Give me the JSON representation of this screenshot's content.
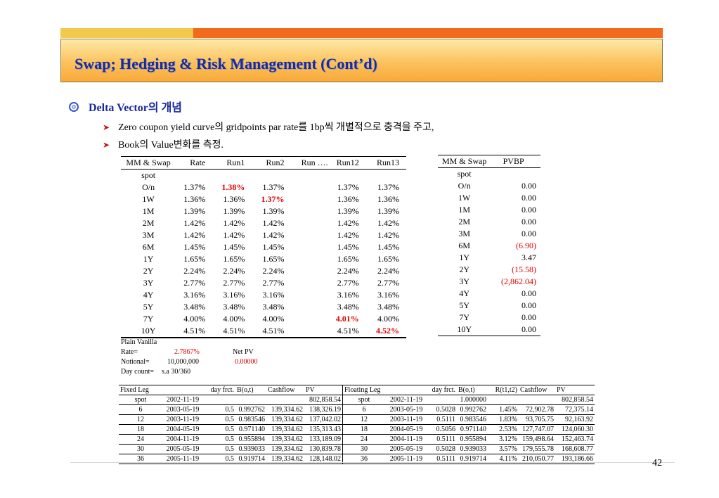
{
  "title": "Swap; Hedging & Risk Management (Cont’d)",
  "bullet": "Delta Vector의 개념",
  "sub_bullets": [
    "Zero coupon yield curve의 gridpoints par rate를 1bp씩 개별적으로 충격을 주고,",
    "Book의 Value변화를 측정."
  ],
  "rate_table": {
    "headers": [
      "MM & Swap",
      "Rate",
      "Run1",
      "Run2",
      "Run ….",
      "Run12",
      "Run13"
    ],
    "rows": [
      [
        "spot",
        "",
        "",
        "",
        "",
        "",
        ""
      ],
      [
        "O/n",
        "1.37%",
        "1.38%",
        "1.37%",
        "",
        "1.37%",
        "1.37%"
      ],
      [
        "1W",
        "1.36%",
        "1.36%",
        "1.37%",
        "",
        "1.36%",
        "1.36%"
      ],
      [
        "1M",
        "1.39%",
        "1.39%",
        "1.39%",
        "",
        "1.39%",
        "1.39%"
      ],
      [
        "2M",
        "1.42%",
        "1.42%",
        "1.42%",
        "",
        "1.42%",
        "1.42%"
      ],
      [
        "3M",
        "1.42%",
        "1.42%",
        "1.42%",
        "",
        "1.42%",
        "1.42%"
      ],
      [
        "6M",
        "1.45%",
        "1.45%",
        "1.45%",
        "",
        "1.45%",
        "1.45%"
      ],
      [
        "1Y",
        "1.65%",
        "1.65%",
        "1.65%",
        "",
        "1.65%",
        "1.65%"
      ],
      [
        "2Y",
        "2.24%",
        "2.24%",
        "2.24%",
        "",
        "2.24%",
        "2.24%"
      ],
      [
        "3Y",
        "2.77%",
        "2.77%",
        "2.77%",
        "",
        "2.77%",
        "2.77%"
      ],
      [
        "4Y",
        "3.16%",
        "3.16%",
        "3.16%",
        "",
        "3.16%",
        "3.16%"
      ],
      [
        "5Y",
        "3.48%",
        "3.48%",
        "3.48%",
        "",
        "3.48%",
        "3.48%"
      ],
      [
        "7Y",
        "4.00%",
        "4.00%",
        "4.00%",
        "",
        "4.01%",
        "4.00%"
      ],
      [
        "10Y",
        "4.51%",
        "4.51%",
        "4.51%",
        "",
        "4.51%",
        "4.52%"
      ]
    ],
    "highlighted": [
      [
        1,
        2
      ],
      [
        2,
        3
      ],
      [
        12,
        5
      ],
      [
        13,
        6
      ]
    ]
  },
  "pvbp_table": {
    "headers": [
      "MM & Swap",
      "PVBP"
    ],
    "rows": [
      [
        "spot",
        ""
      ],
      [
        "O/n",
        "0.00"
      ],
      [
        "1W",
        "0.00"
      ],
      [
        "1M",
        "0.00"
      ],
      [
        "2M",
        "0.00"
      ],
      [
        "3M",
        "0.00"
      ],
      [
        "6M",
        "(6.90)"
      ],
      [
        "1Y",
        "3.47"
      ],
      [
        "2Y",
        "(15.58)"
      ],
      [
        "3Y",
        "(2,862.04)"
      ],
      [
        "4Y",
        "0.00"
      ],
      [
        "5Y",
        "0.00"
      ],
      [
        "7Y",
        "0.00"
      ],
      [
        "10Y",
        "0.00"
      ]
    ],
    "negative_rows": [
      6,
      8,
      9
    ]
  },
  "swap_info": {
    "plain_vanilla": "Plain Vanilla",
    "rate_label": "Rate=",
    "rate_value": "2.7867%",
    "net_pv_label": "Net PV",
    "notional_label": "Notional=",
    "notional_value": "10,000,000",
    "net_pv_value": "0.00000",
    "day_count_label": "Day count=",
    "day_count_value": "s.a 30/360"
  },
  "fixed_leg": {
    "headers": [
      "Fixed Leg",
      "",
      "day frct.",
      "B(o,t)",
      "Cashflow",
      "PV"
    ],
    "rows": [
      [
        "spot",
        "2002-11-19",
        "",
        "",
        "",
        "802,858.54"
      ],
      [
        "6",
        "2003-05-19",
        "0.5",
        "0.992762",
        "139,334.62",
        "138,326.19"
      ],
      [
        "12",
        "2003-11-19",
        "0.5",
        "0.983546",
        "139,334.62",
        "137,042.02"
      ],
      [
        "18",
        "2004-05-19",
        "0.5",
        "0.971140",
        "139,334.62",
        "135,313.43"
      ],
      [
        "24",
        "2004-11-19",
        "0.5",
        "0.955894",
        "139,334.62",
        "133,189.09"
      ],
      [
        "30",
        "2005-05-19",
        "0.5",
        "0.939033",
        "139,334.62",
        "130,839.78"
      ],
      [
        "36",
        "2005-11-19",
        "0.5",
        "0.919714",
        "139,334.62",
        "128,148.02"
      ]
    ]
  },
  "floating_leg": {
    "headers": [
      "Floating Leg",
      "",
      "day frct.",
      "B(o,t)",
      "R(t1,t2)",
      "Cashflow",
      "PV"
    ],
    "rows": [
      [
        "spot",
        "2002-11-19",
        "",
        "1.000000",
        "",
        "",
        "802,858.54"
      ],
      [
        "6",
        "2003-05-19",
        "0.5028",
        "0.992762",
        "1.45%",
        "72,902.78",
        "72,375.14"
      ],
      [
        "12",
        "2003-11-19",
        "0.5111",
        "0.983546",
        "1.83%",
        "93,705.75",
        "92,163.92"
      ],
      [
        "18",
        "2004-05-19",
        "0.5056",
        "0.971140",
        "2.53%",
        "127,747.07",
        "124,060.30"
      ],
      [
        "24",
        "2004-11-19",
        "0.5111",
        "0.955894",
        "3.12%",
        "159,498.64",
        "152,463.74"
      ],
      [
        "30",
        "2005-05-19",
        "0.5028",
        "0.939033",
        "3.57%",
        "179,555.78",
        "168,608.77"
      ],
      [
        "36",
        "2005-11-19",
        "0.5111",
        "0.919714",
        "4.11%",
        "210,050.77",
        "193,186.66"
      ]
    ]
  },
  "page_number": "42",
  "colors": {
    "title_text": "#1a2a9c",
    "highlight_red": "#e00000",
    "top_bar_left": "#f2c94c",
    "top_bar_right": "#f26a1b"
  }
}
